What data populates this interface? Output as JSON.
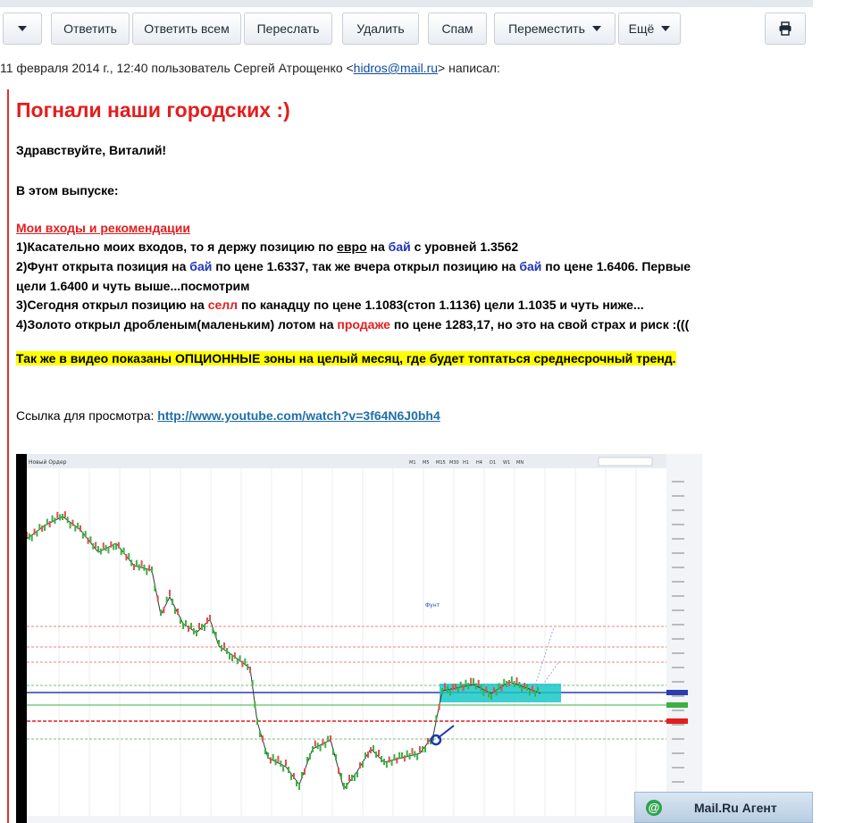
{
  "toolbar": {
    "reply": "Ответить",
    "reply_all": "Ответить всем",
    "forward": "Переслать",
    "delete": "Удалить",
    "spam": "Спам",
    "move": "Переместить",
    "more": "Ещё"
  },
  "meta": {
    "prefix": "11 февраля 2014 г., 12:40 пользователь Сергей Атрощенко <",
    "email": "hidros@mail.ru",
    "suffix": "> написал:"
  },
  "message": {
    "title": "Погнали наши городских :)",
    "greeting": "Здравствуйте, Виталий!",
    "issue": "В этом выпуске:",
    "section": "Мои входы и рекомендации",
    "l1a": "1)Касательно моих входов, то я держу позицию по ",
    "l1_euro": "евро",
    "l1b": " на ",
    "l1_buy": "бай",
    "l1c": " с уровней 1.3562",
    "l2a": "2)Фунт открыта позиция на ",
    "l2_buy1": "бай",
    "l2b": " по цене 1.6337, так же вчера открыл позицию на ",
    "l2_buy2": "бай",
    "l2c": " по цене 1.6406. Первые",
    "l2d": "цели 1.6400 и чуть выше...посмотрим",
    "l3a": "3)Сегодня открыл позицию на ",
    "l3_sell": "селл",
    "l3b": " по канадцу по цене 1.1083(стоп 1.1136) цели 1.1035 и чуть ниже...",
    "l4a": "4)Золото открыл дробленым(маленьким) лотом на ",
    "l4_sale": "продаже",
    "l4b": " по цене 1283,17, но это  на свой страх  и риск :(((",
    "highlight": "Так же в видео показаны ОПЦИОННЫЕ зоны на целый месяц, где будет топтаться среднесрочный тренд.",
    "link_label": "Ссылка для просмотра: ",
    "link_url": "http://www.youtube.com/watch?v=3f64N6J0bh4"
  },
  "chart": {
    "toolbar_label": "Новый Ордер",
    "timeframes": [
      "M1",
      "M5",
      "M15",
      "M30",
      "H1",
      "H4",
      "D1",
      "W1",
      "MN"
    ],
    "symbol_label": "Фунт"
  },
  "agent": {
    "label": "Mail.Ru Агент"
  },
  "colors": {
    "accent_red": "#e41d1d",
    "link_blue": "#1f35b8",
    "highlight": "#ffff00"
  }
}
